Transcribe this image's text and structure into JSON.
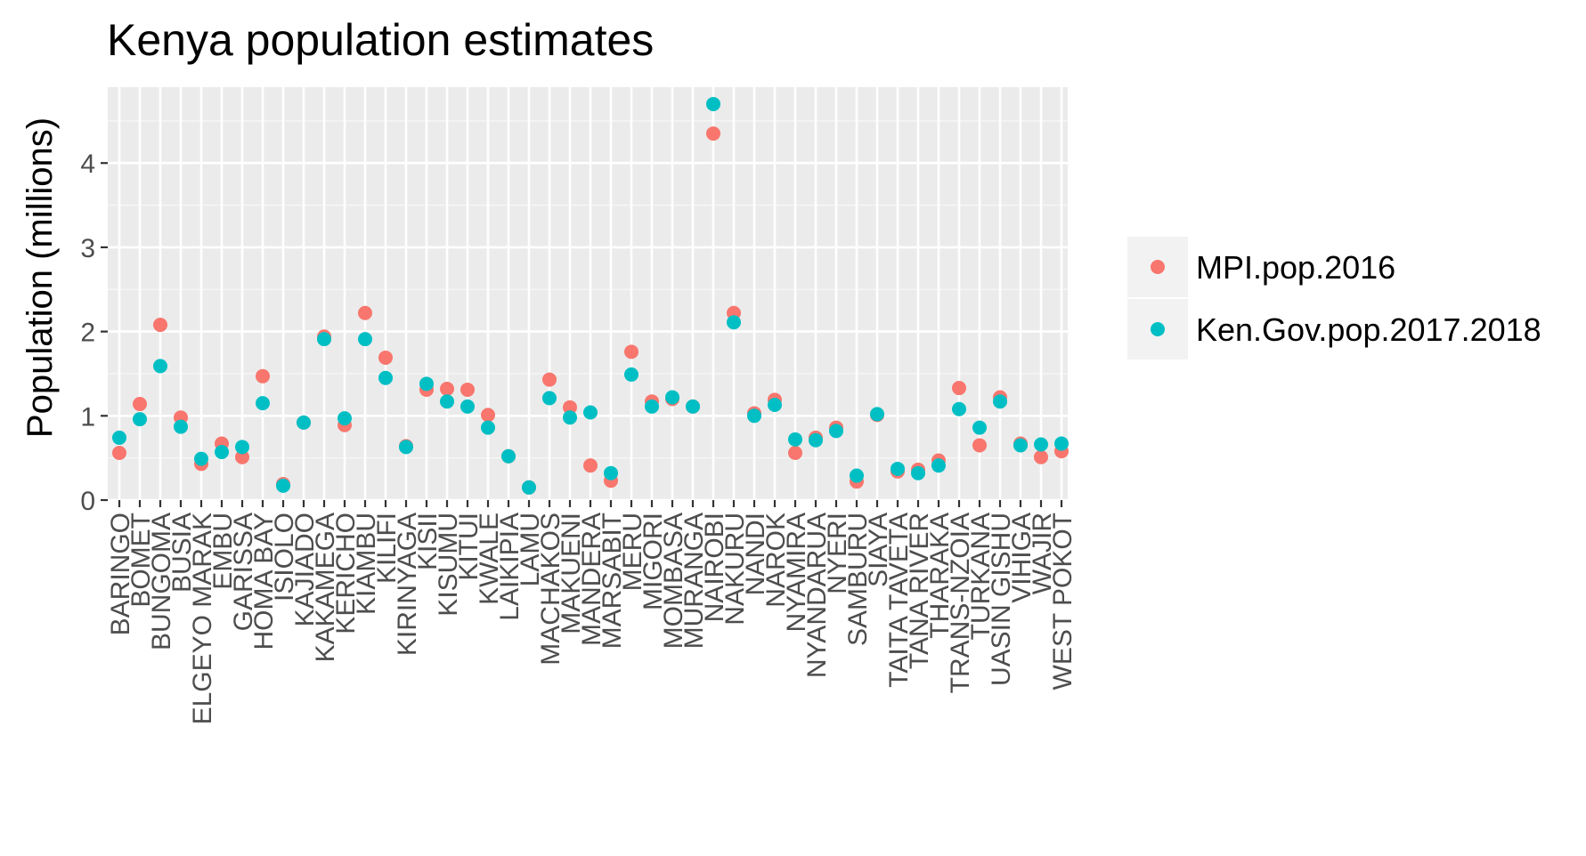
{
  "chart_data": {
    "type": "scatter",
    "title": "Kenya population estimates",
    "xlabel": "",
    "ylabel": "Population (millions)",
    "ylim": [
      0,
      4.9
    ],
    "yticks": [
      0,
      1,
      2,
      3,
      4
    ],
    "grid": true,
    "legend_position": "right",
    "categories": [
      "BARINGO",
      "BOMET",
      "BUNGOMA",
      "BUSIA",
      "ELGEYO MARAK",
      "EMBU",
      "GARISSA",
      "HOMA BAY",
      "ISIOLO",
      "KAJIADO",
      "KAKAMEGA",
      "KERICHO",
      "KIAMBU",
      "KILIFI",
      "KIRINYAGA",
      "KISII",
      "KISUMU",
      "KITUI",
      "KWALE",
      "LAIKIPIA",
      "LAMU",
      "MACHAKOS",
      "MAKUENI",
      "MANDERA",
      "MARSABIT",
      "MERU",
      "MIGORI",
      "MOMBASA",
      "MURANGA",
      "NAIROBI",
      "NAKURU",
      "NANDI",
      "NAROK",
      "NYAMIRA",
      "NYANDARUA",
      "NYERI",
      "SAMBURU",
      "SIAYA",
      "TAITA TAVETA",
      "TANA RIVER",
      "THARAKA",
      "TRANS-NZOIA",
      "TURKANA",
      "UASIN GISHU",
      "VIHIGA",
      "WAJIR",
      "WEST POKOT"
    ],
    "series": [
      {
        "name": "MPI.pop.2016",
        "color": "#F8766D",
        "values": [
          0.56,
          1.14,
          2.08,
          0.98,
          0.43,
          0.67,
          0.51,
          1.47,
          0.19,
          0.92,
          1.94,
          0.89,
          2.22,
          1.69,
          0.64,
          1.31,
          1.32,
          1.31,
          1.01,
          0.52,
          0.15,
          1.43,
          1.1,
          0.41,
          0.23,
          1.76,
          1.17,
          1.2,
          1.11,
          4.35,
          2.22,
          1.03,
          1.19,
          0.56,
          0.74,
          0.86,
          0.22,
          1.01,
          0.34,
          0.36,
          0.47,
          1.33,
          0.65,
          1.22,
          0.67,
          0.51,
          0.58
        ]
      },
      {
        "name": "Ken.Gov.pop.2017.2018",
        "color": "#00BFC4",
        "values": [
          0.74,
          0.96,
          1.59,
          0.87,
          0.49,
          0.57,
          0.63,
          1.15,
          0.17,
          0.92,
          1.91,
          0.97,
          1.91,
          1.45,
          0.63,
          1.38,
          1.17,
          1.11,
          0.86,
          0.52,
          0.15,
          1.21,
          0.98,
          1.04,
          0.32,
          1.49,
          1.11,
          1.22,
          1.11,
          4.7,
          2.11,
          1.0,
          1.13,
          0.72,
          0.71,
          0.82,
          0.29,
          1.02,
          0.37,
          0.32,
          0.41,
          1.08,
          0.86,
          1.17,
          0.65,
          0.66,
          0.67
        ]
      }
    ]
  },
  "legend": {
    "items": [
      "MPI.pop.2016",
      "Ken.Gov.pop.2017.2018"
    ]
  }
}
